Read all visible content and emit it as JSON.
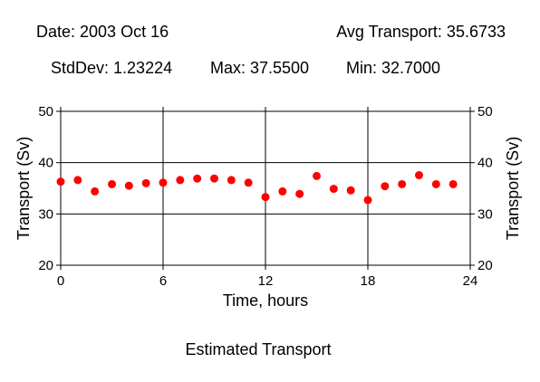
{
  "header": {
    "date": "Date: 2003 Oct 16",
    "avg": "Avg Transport: 35.6733",
    "stddev": "StdDev: 1.23224",
    "max": "Max: 37.5500",
    "min": "Min: 32.7000"
  },
  "caption": "Estimated Transport",
  "colors": {
    "marker": "#ff0000",
    "grid": "#000000",
    "frame": "#000000"
  },
  "chart_data": {
    "type": "scatter",
    "title": "Estimated Transport",
    "xlabel": "Time, hours",
    "ylabel": "Transport (Sv)",
    "ylabel_right": "Transport (Sv)",
    "xlim": [
      0,
      24
    ],
    "ylim": [
      20,
      50
    ],
    "x_ticks": [
      "0",
      "6",
      "12",
      "18",
      "24"
    ],
    "y_ticks": [
      "20",
      "30",
      "40",
      "50"
    ],
    "grid": true,
    "series": [
      {
        "x": [
          0,
          1,
          2,
          3,
          4,
          5,
          6,
          7,
          8,
          9,
          10,
          11,
          12,
          13,
          14,
          15,
          16,
          17,
          18,
          19,
          20,
          21,
          22,
          23
        ],
        "y": [
          36.3,
          36.6,
          34.4,
          35.8,
          35.5,
          36.0,
          36.1,
          36.6,
          36.9,
          36.9,
          36.6,
          36.1,
          33.3,
          34.4,
          33.9,
          37.4,
          34.9,
          34.6,
          32.7,
          35.4,
          35.8,
          37.55,
          35.8,
          35.8
        ]
      }
    ]
  }
}
